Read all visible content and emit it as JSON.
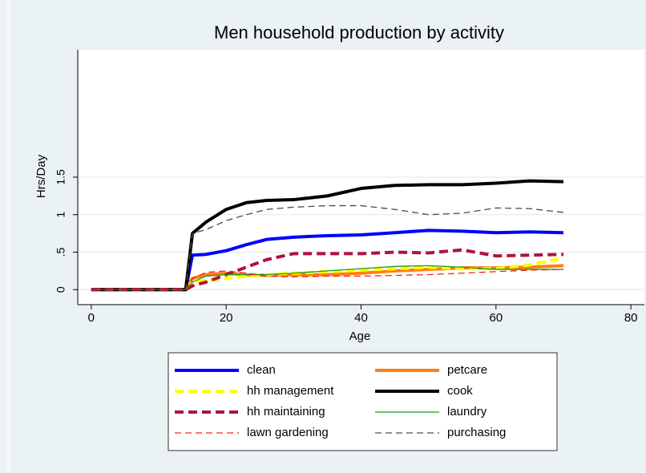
{
  "chart_data": {
    "type": "line",
    "title": "Men household production by activity",
    "x_label": "Age",
    "y_label": "Hrs/Day",
    "x": [
      0,
      2,
      4,
      6,
      8,
      10,
      12,
      14,
      15,
      17,
      20,
      23,
      26,
      30,
      35,
      40,
      45,
      50,
      55,
      60,
      65,
      70
    ],
    "xlim": [
      -2,
      82
    ],
    "xticks": [
      0,
      20,
      40,
      60,
      80
    ],
    "ylim": [
      -0.2,
      3.2
    ],
    "yticks": [
      0,
      {
        "value": 0.5,
        "label": ".5"
      },
      1,
      1.5
    ],
    "grid": true,
    "legend": "bottom",
    "series": [
      {
        "name": "clean",
        "color": "#0000ff",
        "style": "solid",
        "weight": "thick",
        "values": [
          0,
          0,
          0,
          0,
          0,
          0,
          0,
          0,
          0.46,
          0.47,
          0.52,
          0.6,
          0.67,
          0.7,
          0.72,
          0.73,
          0.76,
          0.79,
          0.78,
          0.76,
          0.77,
          0.76
        ]
      },
      {
        "name": "petcare",
        "color": "#ff7f0e",
        "style": "solid",
        "weight": "thick",
        "values": [
          0,
          0,
          0,
          0,
          0,
          0,
          0,
          0,
          0.15,
          0.2,
          0.22,
          0.2,
          0.19,
          0.2,
          0.2,
          0.22,
          0.25,
          0.27,
          0.29,
          0.29,
          0.3,
          0.32
        ]
      },
      {
        "name": "hh management",
        "color": "#ffff00",
        "style": "dashed",
        "weight": "thick",
        "values": [
          0,
          0,
          0,
          0,
          0,
          0,
          0,
          0,
          0.1,
          0.12,
          0.15,
          0.18,
          0.2,
          0.22,
          0.24,
          0.26,
          0.28,
          0.3,
          0.28,
          0.28,
          0.33,
          0.42
        ]
      },
      {
        "name": "cook",
        "color": "#000000",
        "style": "solid",
        "weight": "thick",
        "values": [
          0,
          0,
          0,
          0,
          0,
          0,
          0,
          0,
          0.75,
          0.9,
          1.07,
          1.16,
          1.19,
          1.2,
          1.25,
          1.35,
          1.39,
          1.4,
          1.4,
          1.42,
          1.45,
          1.44
        ]
      },
      {
        "name": "hh maintaining",
        "color": "#b0133e",
        "style": "dashed",
        "weight": "thick",
        "values": [
          0,
          0,
          0,
          0,
          0,
          0,
          0,
          0,
          0.05,
          0.1,
          0.2,
          0.3,
          0.4,
          0.48,
          0.48,
          0.48,
          0.5,
          0.49,
          0.53,
          0.45,
          0.46,
          0.47
        ]
      },
      {
        "name": "laundry",
        "color": "#1a9a1a",
        "style": "solid",
        "weight": "thin",
        "values": [
          0,
          0,
          0,
          0,
          0,
          0,
          0,
          0,
          0.1,
          0.18,
          0.2,
          0.2,
          0.2,
          0.22,
          0.25,
          0.28,
          0.31,
          0.32,
          0.3,
          0.27,
          0.27,
          0.27
        ]
      },
      {
        "name": "lawn gardening",
        "color": "#ff2020",
        "style": "dashed",
        "weight": "thin",
        "values": [
          0,
          0,
          0,
          0,
          0,
          0,
          0,
          0,
          0.15,
          0.23,
          0.25,
          0.22,
          0.18,
          0.17,
          0.18,
          0.18,
          0.19,
          0.2,
          0.22,
          0.24,
          0.26,
          0.27
        ]
      },
      {
        "name": "purchasing",
        "color": "#5a4a30",
        "style": "dashed",
        "weight": "thin",
        "values": [
          0,
          0,
          0,
          0,
          0,
          0,
          0,
          0,
          0.75,
          0.8,
          0.92,
          1.0,
          1.07,
          1.1,
          1.12,
          1.12,
          1.07,
          1.0,
          1.02,
          1.09,
          1.08,
          1.03
        ]
      }
    ]
  }
}
